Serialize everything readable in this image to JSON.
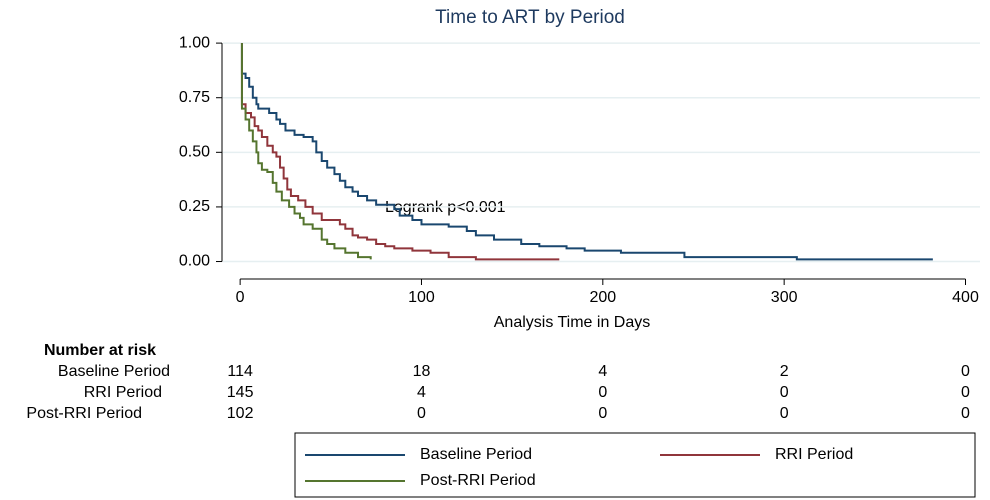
{
  "chart_data": {
    "type": "step",
    "title": "Time to ART by Period",
    "x_label": "Analysis Time in Days",
    "annotation": "Logrank p<0.001",
    "xlim": [
      -10,
      408
    ],
    "ylim": [
      -0.08,
      1.06
    ],
    "xticks": [
      0,
      100,
      200,
      300,
      400
    ],
    "yticks": [
      {
        "value": 0,
        "label": "0.00"
      },
      {
        "value": 0.25,
        "label": "0.25"
      },
      {
        "value": 0.5,
        "label": "0.50"
      },
      {
        "value": 0.75,
        "label": "0.75"
      },
      {
        "value": 1,
        "label": "1.00"
      }
    ],
    "grid": true,
    "series": [
      {
        "name": "Baseline Period",
        "color": "#1a476f",
        "x": [
          1,
          1,
          3,
          5,
          7,
          9,
          10,
          16,
          20,
          22,
          25,
          30,
          35,
          40,
          42,
          45,
          48,
          52,
          55,
          58,
          62,
          65,
          70,
          75,
          85,
          88,
          95,
          100,
          115,
          125,
          130,
          140,
          155,
          165,
          180,
          190,
          210,
          245,
          307,
          382
        ],
        "y": [
          1,
          0.86,
          0.84,
          0.8,
          0.75,
          0.72,
          0.7,
          0.68,
          0.65,
          0.63,
          0.6,
          0.58,
          0.57,
          0.55,
          0.5,
          0.46,
          0.43,
          0.4,
          0.37,
          0.34,
          0.32,
          0.3,
          0.28,
          0.26,
          0.24,
          0.21,
          0.19,
          0.17,
          0.16,
          0.14,
          0.12,
          0.1,
          0.08,
          0.07,
          0.06,
          0.05,
          0.04,
          0.02,
          0.01,
          0.01
        ]
      },
      {
        "name": "RRI Period",
        "color": "#90353b",
        "x": [
          1,
          1,
          3,
          6,
          8,
          10,
          12,
          15,
          18,
          20,
          22,
          24,
          26,
          28,
          32,
          36,
          40,
          45,
          55,
          58,
          62,
          65,
          70,
          75,
          80,
          85,
          95,
          105,
          115,
          130,
          176
        ],
        "y": [
          1,
          0.72,
          0.68,
          0.66,
          0.62,
          0.6,
          0.57,
          0.53,
          0.5,
          0.48,
          0.43,
          0.38,
          0.33,
          0.3,
          0.28,
          0.25,
          0.22,
          0.19,
          0.17,
          0.15,
          0.12,
          0.11,
          0.1,
          0.08,
          0.07,
          0.06,
          0.05,
          0.04,
          0.02,
          0.01,
          0.01
        ]
      },
      {
        "name": "Post-RRI Period",
        "color": "#55752f",
        "x": [
          1,
          1,
          3,
          5,
          7,
          9,
          10,
          12,
          15,
          18,
          20,
          23,
          27,
          30,
          33,
          35,
          40,
          45,
          48,
          52,
          58,
          65,
          72
        ],
        "y": [
          1,
          0.7,
          0.65,
          0.6,
          0.55,
          0.5,
          0.45,
          0.42,
          0.41,
          0.36,
          0.32,
          0.28,
          0.25,
          0.22,
          0.2,
          0.17,
          0.15,
          0.1,
          0.08,
          0.06,
          0.04,
          0.02,
          0.01
        ]
      }
    ],
    "risk_table": {
      "title": "Number at risk",
      "rows": [
        {
          "label": "Baseline Period",
          "values": [
            114,
            18,
            4,
            2,
            0
          ]
        },
        {
          "label": "RRI Period",
          "values": [
            145,
            4,
            0,
            0,
            0
          ]
        },
        {
          "label": "Post-RRI Period",
          "values": [
            102,
            0,
            0,
            0,
            0
          ]
        }
      ]
    }
  }
}
